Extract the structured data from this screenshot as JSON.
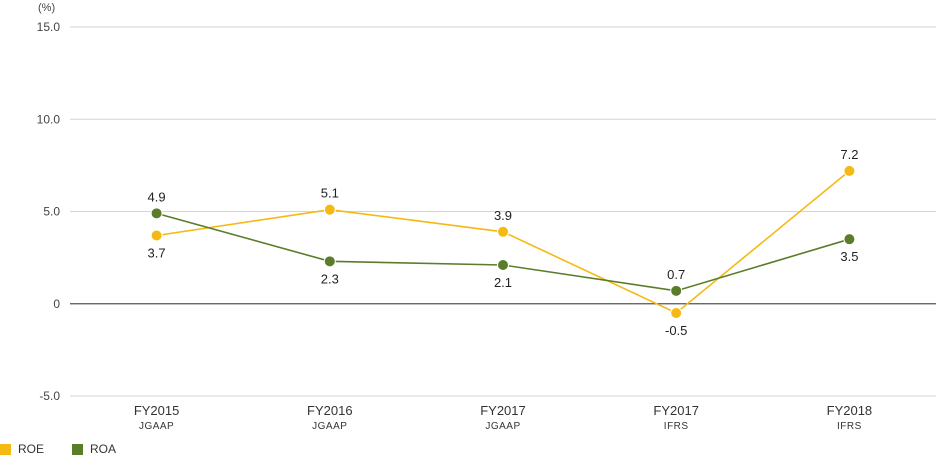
{
  "chart_data": {
    "type": "line",
    "unit_label": "(%)",
    "categories": [
      {
        "label": "FY2015",
        "sub": "JGAAP"
      },
      {
        "label": "FY2016",
        "sub": "JGAAP"
      },
      {
        "label": "FY2017",
        "sub": "JGAAP"
      },
      {
        "label": "FY2017",
        "sub": "IFRS"
      },
      {
        "label": "FY2018",
        "sub": "IFRS"
      }
    ],
    "series": [
      {
        "name": "ROE",
        "color": "#f5b914",
        "values": [
          3.7,
          5.1,
          3.9,
          -0.5,
          7.2
        ],
        "label_positions": [
          "below",
          "above",
          "above",
          "below",
          "above"
        ]
      },
      {
        "name": "ROA",
        "color": "#5a7d2a",
        "values": [
          4.9,
          2.3,
          2.1,
          0.7,
          3.5
        ],
        "label_positions": [
          "above",
          "below",
          "below",
          "above",
          "below"
        ]
      }
    ],
    "ylim": [
      -5.0,
      15.0
    ],
    "yticks": [
      "15.0",
      "10.0",
      "5.0",
      "0",
      "-5.0"
    ],
    "ytick_values": [
      15,
      10,
      5,
      0,
      -5
    ],
    "grid": true,
    "legend_placement": "bottom-left"
  }
}
